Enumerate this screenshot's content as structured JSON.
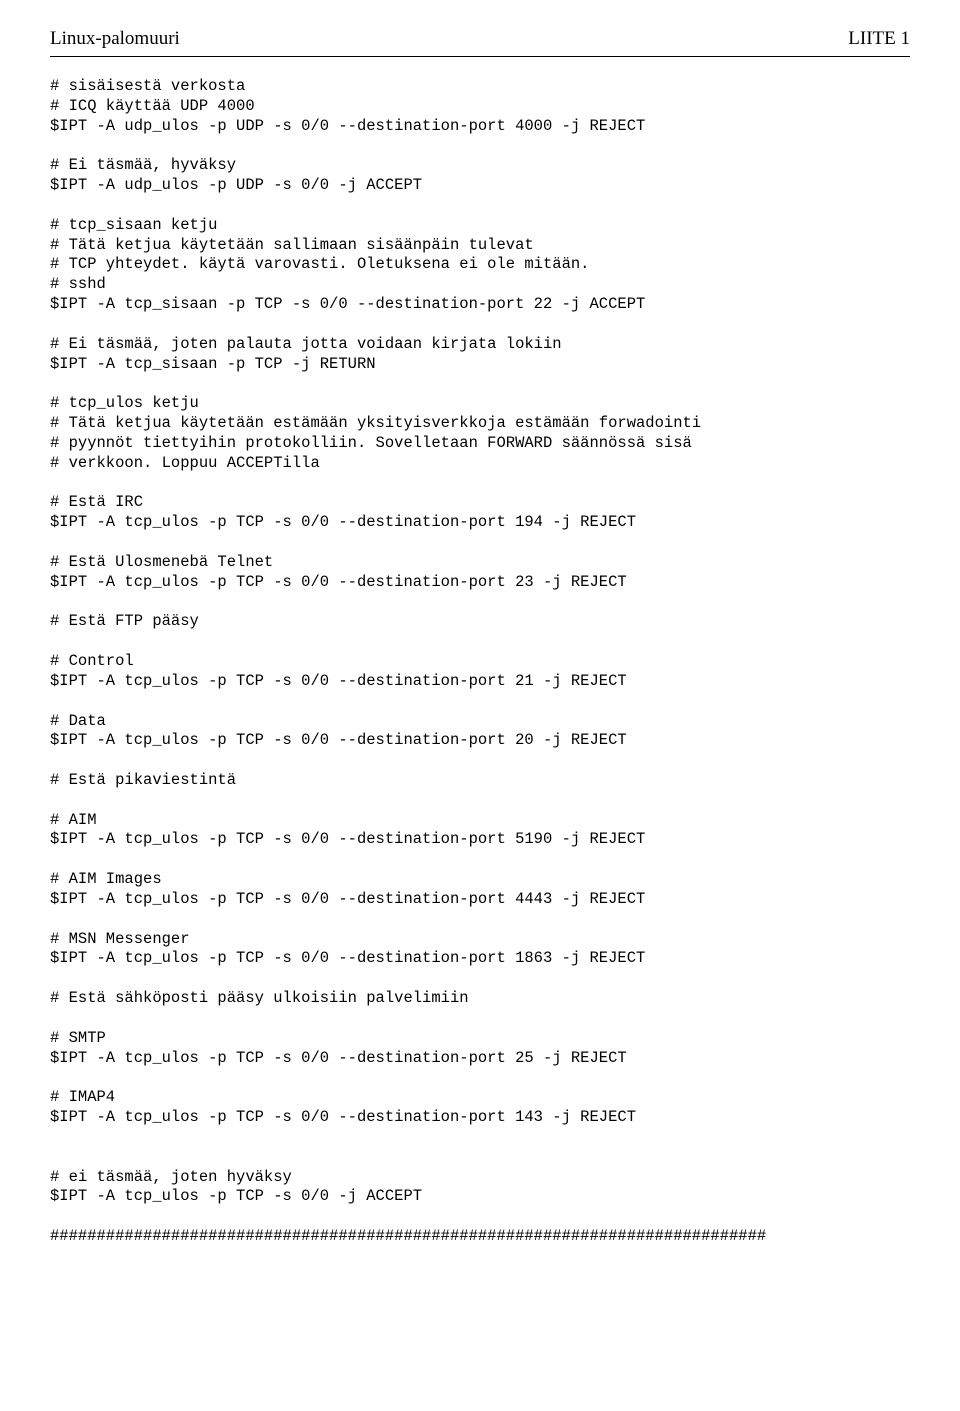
{
  "header": {
    "left": "Linux-palomuuri",
    "right": "LIITE 1"
  },
  "code": {
    "lines": [
      "# sisäisestä verkosta",
      "# ICQ käyttää UDP 4000",
      "$IPT -A udp_ulos -p UDP -s 0/0 --destination-port 4000 -j REJECT",
      "",
      "# Ei täsmää, hyväksy",
      "$IPT -A udp_ulos -p UDP -s 0/0 -j ACCEPT",
      "",
      "# tcp_sisaan ketju",
      "# Tätä ketjua käytetään sallimaan sisäänpäin tulevat",
      "# TCP yhteydet. käytä varovasti. Oletuksena ei ole mitään.",
      "# sshd",
      "$IPT -A tcp_sisaan -p TCP -s 0/0 --destination-port 22 -j ACCEPT",
      "",
      "# Ei täsmää, joten palauta jotta voidaan kirjata lokiin",
      "$IPT -A tcp_sisaan -p TCP -j RETURN",
      "",
      "# tcp_ulos ketju",
      "# Tätä ketjua käytetään estämään yksityisverkkoja estämään forwadointi",
      "# pyynnöt tiettyihin protokolliin. Sovelletaan FORWARD säännössä sisä",
      "# verkkoon. Loppuu ACCEPTilla",
      "",
      "# Estä IRC",
      "$IPT -A tcp_ulos -p TCP -s 0/0 --destination-port 194 -j REJECT",
      "",
      "# Estä Ulosmenebä Telnet",
      "$IPT -A tcp_ulos -p TCP -s 0/0 --destination-port 23 -j REJECT",
      "",
      "# Estä FTP pääsy",
      "",
      "# Control",
      "$IPT -A tcp_ulos -p TCP -s 0/0 --destination-port 21 -j REJECT",
      "",
      "# Data",
      "$IPT -A tcp_ulos -p TCP -s 0/0 --destination-port 20 -j REJECT",
      "",
      "# Estä pikaviestintä",
      "",
      "# AIM",
      "$IPT -A tcp_ulos -p TCP -s 0/0 --destination-port 5190 -j REJECT",
      "",
      "# AIM Images",
      "$IPT -A tcp_ulos -p TCP -s 0/0 --destination-port 4443 -j REJECT",
      "",
      "# MSN Messenger",
      "$IPT -A tcp_ulos -p TCP -s 0/0 --destination-port 1863 -j REJECT",
      "",
      "# Estä sähköposti pääsy ulkoisiin palvelimiin",
      "",
      "# SMTP",
      "$IPT -A tcp_ulos -p TCP -s 0/0 --destination-port 25 -j REJECT",
      "",
      "# IMAP4",
      "$IPT -A tcp_ulos -p TCP -s 0/0 --destination-port 143 -j REJECT",
      "",
      "",
      "# ei täsmää, joten hyväksy",
      "$IPT -A tcp_ulos -p TCP -s 0/0 -j ACCEPT",
      "",
      "#############################################################################"
    ]
  }
}
